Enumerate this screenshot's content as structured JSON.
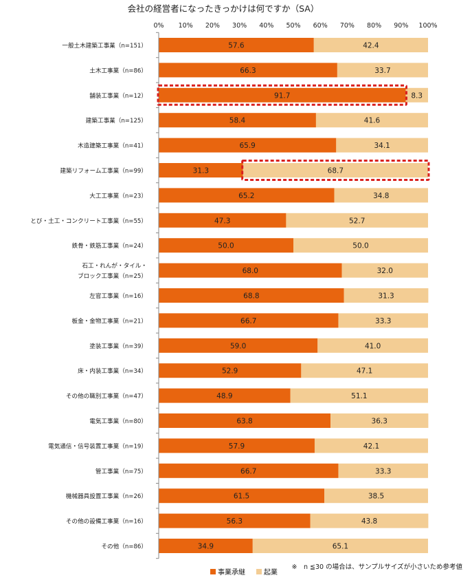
{
  "chart_data": {
    "type": "bar",
    "orientation": "horizontal",
    "stacked": true,
    "title": "会社の経営者になったきっかけは何ですか（SA）",
    "x_ticks": [
      "0%",
      "10%",
      "20%",
      "30%",
      "40%",
      "50%",
      "60%",
      "70%",
      "80%",
      "90%",
      "100%"
    ],
    "xlim": [
      0,
      100
    ],
    "grid": false,
    "legend_position": "bottom",
    "note": "※　n ≦30 の場合は、サンプルサイズが小さいため参考値",
    "categories": [
      [
        "一般土木建築工事業（n=151）"
      ],
      [
        "土木工事業（n=86）"
      ],
      [
        "舗装工事業（n=12）"
      ],
      [
        "建築工事業（n=125）"
      ],
      [
        "木造建築工事業（n=41）"
      ],
      [
        "建築リフォーム工事業（n=99）"
      ],
      [
        "大工工事業（n=23）"
      ],
      [
        "とび・土工・コンクリート工事業（n=55）"
      ],
      [
        "鉄骨・鉄筋工事業（n=24）"
      ],
      [
        "石工・れんが・タイル・",
        "ブロック工事業（n=25）"
      ],
      [
        "左官工事業（n=16）"
      ],
      [
        "板金・金物工事業（n=21）"
      ],
      [
        "塗装工事業（n=39）"
      ],
      [
        "床・内装工事業（n=34）"
      ],
      [
        "その他の職別工事業（n=47）"
      ],
      [
        "電気工事業（n=80）"
      ],
      [
        "電気通信・信号装置工事業（n=19）"
      ],
      [
        "管工事業（n=75）"
      ],
      [
        "機械器具設置工事業（n=26）"
      ],
      [
        "その他の設備工事業（n=16）"
      ],
      [
        "その他（n=86）"
      ]
    ],
    "series": [
      {
        "name": "事業承継",
        "color": "#E8650F",
        "values": [
          57.6,
          66.3,
          91.7,
          58.4,
          65.9,
          31.3,
          65.2,
          47.3,
          50.0,
          68.0,
          68.8,
          66.7,
          59.0,
          52.9,
          48.9,
          63.8,
          57.9,
          66.7,
          61.5,
          56.3,
          34.9
        ],
        "labels": [
          "57.6",
          "66.3",
          "91.7",
          "58.4",
          "65.9",
          "31.3",
          "65.2",
          "47.3",
          "50.0",
          "68.0",
          "68.8",
          "66.7",
          "59.0",
          "52.9",
          "48.9",
          "63.8",
          "57.9",
          "66.7",
          "61.5",
          "56.3",
          "34.9"
        ]
      },
      {
        "name": "起業",
        "color": "#F3CD94",
        "values": [
          42.4,
          33.7,
          8.3,
          41.6,
          34.1,
          68.7,
          34.8,
          52.7,
          50.0,
          32.0,
          31.3,
          33.3,
          41.0,
          47.1,
          51.1,
          36.3,
          42.1,
          33.3,
          38.5,
          43.8,
          65.1
        ],
        "labels": [
          "42.4",
          "33.7",
          "8.3",
          "41.6",
          "34.1",
          "68.7",
          "34.8",
          "52.7",
          "50.0",
          "32.0",
          "31.3",
          "33.3",
          "41.0",
          "47.1",
          "51.1",
          "36.3",
          "42.1",
          "33.3",
          "38.5",
          "43.8",
          "65.1"
        ]
      }
    ],
    "highlights": [
      {
        "category_index": 2,
        "series_index": 0,
        "color": "#D9201E"
      },
      {
        "category_index": 5,
        "series_index": 1,
        "color": "#D9201E"
      }
    ]
  }
}
